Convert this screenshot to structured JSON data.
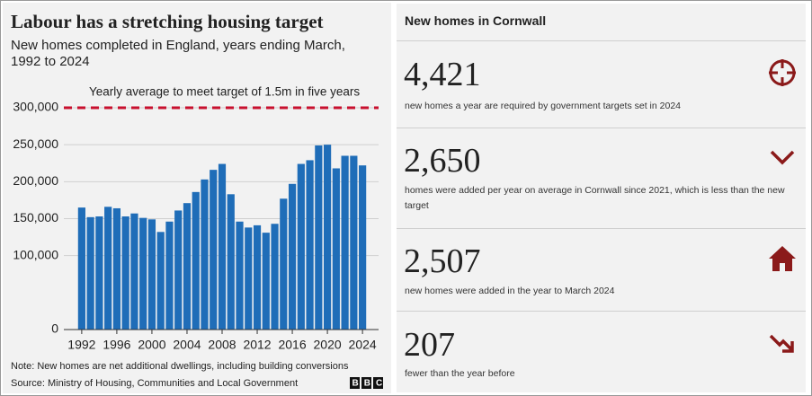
{
  "chart_data": {
    "type": "bar",
    "title": "Labour has a stretching housing target",
    "subtitle": [
      "New homes completed in England, years ending March,",
      "1992 to 2024"
    ],
    "categories": [
      "1992",
      null,
      null,
      null,
      "1996",
      null,
      null,
      null,
      "2000",
      null,
      null,
      null,
      "2004",
      null,
      null,
      null,
      "2008",
      null,
      null,
      null,
      "2012",
      null,
      null,
      null,
      "2016",
      null,
      null,
      null,
      "2020",
      null,
      null,
      null,
      "2024"
    ],
    "values": [
      165000,
      152000,
      153000,
      166000,
      164000,
      153000,
      157000,
      151000,
      149000,
      132000,
      146000,
      161000,
      171000,
      186000,
      203000,
      216000,
      224000,
      183000,
      146000,
      138000,
      141000,
      131000,
      143000,
      177000,
      197000,
      224000,
      229000,
      249000,
      250000,
      218000,
      235000,
      235000,
      222000
    ],
    "color": "#1f6db8",
    "ylim": [
      0,
      320000
    ],
    "yticks": [
      0,
      {
        "value": 100000,
        "label": "100,000"
      },
      {
        "value": 150000,
        "label": "150,000"
      },
      {
        "value": 200000,
        "label": "200,000"
      },
      {
        "value": 250000,
        "label": "250,000"
      },
      {
        "value": 300000,
        "label": "300,000"
      }
    ],
    "grid": true,
    "target_line": {
      "value": 300000,
      "label": "Yearly average to meet target of 1.5m in five years",
      "color": "#c8102e"
    },
    "note": "Note: New homes are net additional dwellings, including building conversions",
    "source": "Source: Ministry of Housing, Communities and Local Government",
    "logo": "BBC"
  },
  "panel": {
    "title": "New homes in Cornwall",
    "items": [
      {
        "number": "4,421",
        "text": "new homes a year are required by government targets set in 2024"
      },
      {
        "number": "2,650",
        "text": "homes were added per year on average in Cornwall since 2021, which is less than the new target"
      },
      {
        "number": "2,507",
        "text": "new homes were added in the year to March 2024"
      },
      {
        "number": "207",
        "text": "fewer than the year before"
      }
    ]
  }
}
